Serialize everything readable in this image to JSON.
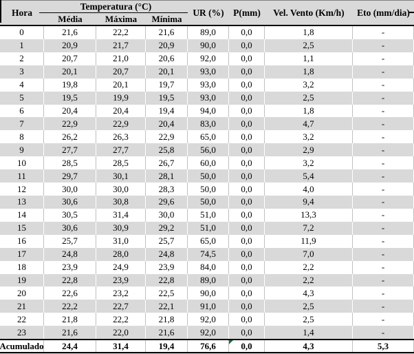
{
  "table": {
    "header": {
      "hora": "Hora",
      "temperatura_group": "Temperatura (°C)",
      "temp_sub": [
        "Média",
        "Máxima",
        "Mínima"
      ],
      "ur": "UR (%)",
      "p": "P(mm)",
      "vel_vento": "Vel. Vento (Km/h)",
      "eto": "Eto (mm/dia)"
    },
    "rows": [
      [
        "0",
        "21,6",
        "22,2",
        "21,6",
        "89,0",
        "0,0",
        "1,8",
        "-"
      ],
      [
        "1",
        "20,9",
        "21,7",
        "20,9",
        "90,0",
        "0,0",
        "2,5",
        "-"
      ],
      [
        "2",
        "20,7",
        "21,0",
        "20,6",
        "92,0",
        "0,0",
        "1,1",
        "-"
      ],
      [
        "3",
        "20,1",
        "20,7",
        "20,1",
        "93,0",
        "0,0",
        "1,8",
        "-"
      ],
      [
        "4",
        "19,8",
        "20,1",
        "19,7",
        "93,0",
        "0,0",
        "3,2",
        "-"
      ],
      [
        "5",
        "19,5",
        "19,9",
        "19,5",
        "93,0",
        "0,0",
        "2,5",
        "-"
      ],
      [
        "6",
        "20,4",
        "20,4",
        "19,4",
        "94,0",
        "0,0",
        "1,8",
        "-"
      ],
      [
        "7",
        "22,9",
        "22,9",
        "20,4",
        "83,0",
        "0,0",
        "4,7",
        "-"
      ],
      [
        "8",
        "26,2",
        "26,3",
        "22,9",
        "65,0",
        "0,0",
        "3,2",
        "-"
      ],
      [
        "9",
        "27,7",
        "27,7",
        "25,8",
        "56,0",
        "0,0",
        "2,9",
        "-"
      ],
      [
        "10",
        "28,5",
        "28,5",
        "26,7",
        "60,0",
        "0,0",
        "3,2",
        "-"
      ],
      [
        "11",
        "29,7",
        "30,1",
        "28,1",
        "50,0",
        "0,0",
        "5,4",
        "-"
      ],
      [
        "12",
        "30,0",
        "30,0",
        "28,3",
        "50,0",
        "0,0",
        "4,0",
        "-"
      ],
      [
        "13",
        "30,6",
        "30,8",
        "29,6",
        "50,0",
        "0,0",
        "9,4",
        "-"
      ],
      [
        "14",
        "30,5",
        "31,4",
        "30,0",
        "51,0",
        "0,0",
        "13,3",
        "-"
      ],
      [
        "15",
        "30,6",
        "30,9",
        "29,2",
        "51,0",
        "0,0",
        "7,2",
        "-"
      ],
      [
        "16",
        "25,7",
        "31,0",
        "25,7",
        "65,0",
        "0,0",
        "11,9",
        "-"
      ],
      [
        "17",
        "24,8",
        "28,0",
        "24,8",
        "74,5",
        "0,0",
        "7,0",
        "-"
      ],
      [
        "18",
        "23,9",
        "24,9",
        "23,9",
        "84,0",
        "0,0",
        "2,2",
        "-"
      ],
      [
        "19",
        "22,8",
        "23,9",
        "22,8",
        "89,0",
        "0,0",
        "2,2",
        "-"
      ],
      [
        "20",
        "22,6",
        "23,2",
        "22,5",
        "90,0",
        "0,0",
        "4,3",
        "-"
      ],
      [
        "21",
        "22,2",
        "22,7",
        "22,1",
        "91,0",
        "0,0",
        "2,5",
        "-"
      ],
      [
        "22",
        "21,8",
        "22,2",
        "21,8",
        "92,0",
        "0,0",
        "2,5",
        "-"
      ],
      [
        "23",
        "21,6",
        "22,0",
        "21,6",
        "92,0",
        "0,0",
        "1,4",
        "-"
      ]
    ],
    "footer": {
      "label": "Acumulado",
      "values": [
        "24,4",
        "31,4",
        "19,4",
        "76,6",
        "0,0",
        "4,3",
        "5,3"
      ]
    },
    "colors": {
      "band_gray": "#d9d9d9",
      "grid_gray": "#bfbfbf",
      "rule_black": "#000000",
      "flag_green": "#217346"
    }
  }
}
